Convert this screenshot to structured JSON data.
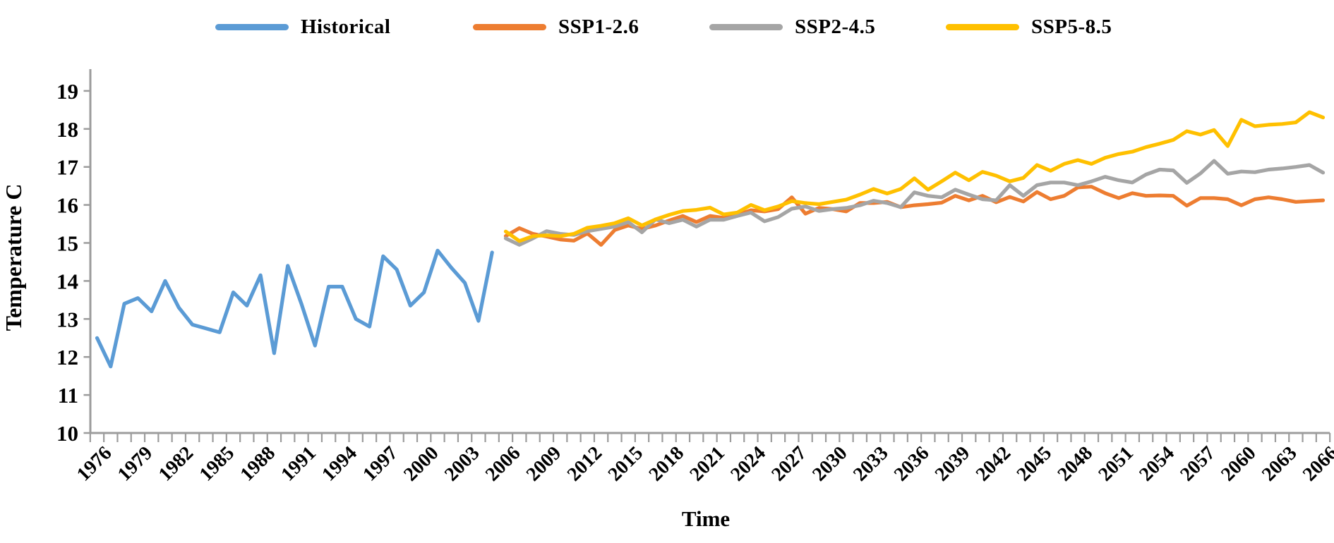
{
  "legend": {
    "items": [
      {
        "label": "Historical",
        "color": "#5B9BD5"
      },
      {
        "label": "SSP1-2.6",
        "color": "#ED7D31"
      },
      {
        "label": "SSP2-4.5",
        "color": "#A5A5A5"
      },
      {
        "label": "SSP5-8.5",
        "color": "#FFC000"
      }
    ]
  },
  "axes": {
    "x_title": "Time",
    "y_title": "Temperature  C",
    "y_ticks": [
      10,
      11,
      12,
      13,
      14,
      15,
      16,
      17,
      18,
      19
    ],
    "x_tick_years": [
      1976,
      1979,
      1982,
      1985,
      1988,
      1991,
      1994,
      1997,
      2000,
      2003,
      2006,
      2009,
      2012,
      2015,
      2018,
      2021,
      2024,
      2027,
      2030,
      2033,
      2036,
      2039,
      2042,
      2045,
      2048,
      2051,
      2054,
      2057,
      2060,
      2063,
      2066
    ],
    "axis_color": "#9C9C9C"
  },
  "chart_data": {
    "type": "line",
    "title": "",
    "xlabel": "Time",
    "ylabel": "Temperature  C",
    "x_range": [
      1976,
      2066
    ],
    "ylim": [
      10,
      19
    ],
    "grid": false,
    "legend_position": "top",
    "series": [
      {
        "name": "Historical",
        "color": "#5B9BD5",
        "start_year": 1976,
        "values": [
          12.5,
          11.75,
          13.4,
          13.55,
          13.2,
          14.0,
          13.3,
          12.85,
          12.75,
          12.65,
          13.7,
          13.35,
          14.15,
          12.1,
          14.4,
          13.4,
          12.3,
          13.85,
          13.85,
          13.0,
          12.8,
          14.65,
          14.3,
          13.35,
          13.7,
          14.8,
          14.35,
          13.95,
          12.95,
          14.75
        ]
      },
      {
        "name": "SSP1-2.6",
        "color": "#ED7D31",
        "start_year": 2006,
        "values": [
          15.18,
          15.39,
          15.24,
          15.17,
          15.09,
          15.06,
          15.25,
          14.95,
          15.34,
          15.46,
          15.37,
          15.46,
          15.59,
          15.71,
          15.55,
          15.71,
          15.66,
          15.74,
          15.86,
          15.83,
          15.89,
          16.2,
          15.77,
          15.92,
          15.89,
          15.83,
          16.05,
          16.05,
          16.08,
          15.94,
          15.99,
          16.02,
          16.06,
          16.24,
          16.12,
          16.24,
          16.07,
          16.21,
          16.09,
          16.34,
          16.15,
          16.24,
          16.46,
          16.48,
          16.31,
          16.18,
          16.31,
          16.24,
          16.25,
          16.24,
          15.98,
          16.18,
          16.18,
          16.15,
          15.99,
          16.15,
          16.2,
          16.15,
          16.08,
          16.1,
          16.12
        ]
      },
      {
        "name": "SSP2-4.5",
        "color": "#A5A5A5",
        "start_year": 2006,
        "values": [
          15.12,
          14.95,
          15.12,
          15.31,
          15.24,
          15.21,
          15.31,
          15.37,
          15.43,
          15.55,
          15.28,
          15.62,
          15.52,
          15.61,
          15.43,
          15.61,
          15.61,
          15.71,
          15.8,
          15.57,
          15.68,
          15.9,
          15.96,
          15.84,
          15.89,
          15.92,
          15.99,
          16.11,
          16.05,
          15.94,
          16.33,
          16.24,
          16.2,
          16.4,
          16.27,
          16.15,
          16.12,
          16.52,
          16.24,
          16.52,
          16.59,
          16.59,
          16.52,
          16.62,
          16.74,
          16.65,
          16.59,
          16.8,
          16.93,
          16.91,
          16.58,
          16.83,
          17.16,
          16.82,
          16.88,
          16.86,
          16.93,
          16.96,
          17.0,
          17.05,
          16.85
        ]
      },
      {
        "name": "SSP5-8.5",
        "color": "#FFC000",
        "start_year": 2006,
        "values": [
          15.3,
          15.05,
          15.18,
          15.2,
          15.18,
          15.24,
          15.4,
          15.45,
          15.52,
          15.65,
          15.46,
          15.62,
          15.74,
          15.84,
          15.87,
          15.93,
          15.75,
          15.8,
          16.0,
          15.86,
          15.96,
          16.1,
          16.05,
          16.02,
          16.08,
          16.14,
          16.27,
          16.42,
          16.3,
          16.42,
          16.7,
          16.4,
          16.62,
          16.85,
          16.65,
          16.87,
          16.77,
          16.62,
          16.71,
          17.05,
          16.9,
          17.08,
          17.18,
          17.08,
          17.24,
          17.34,
          17.4,
          17.52,
          17.61,
          17.71,
          17.94,
          17.85,
          17.97,
          17.55,
          18.24,
          18.07,
          18.11,
          18.13,
          18.17,
          18.44,
          18.3
        ]
      }
    ]
  }
}
